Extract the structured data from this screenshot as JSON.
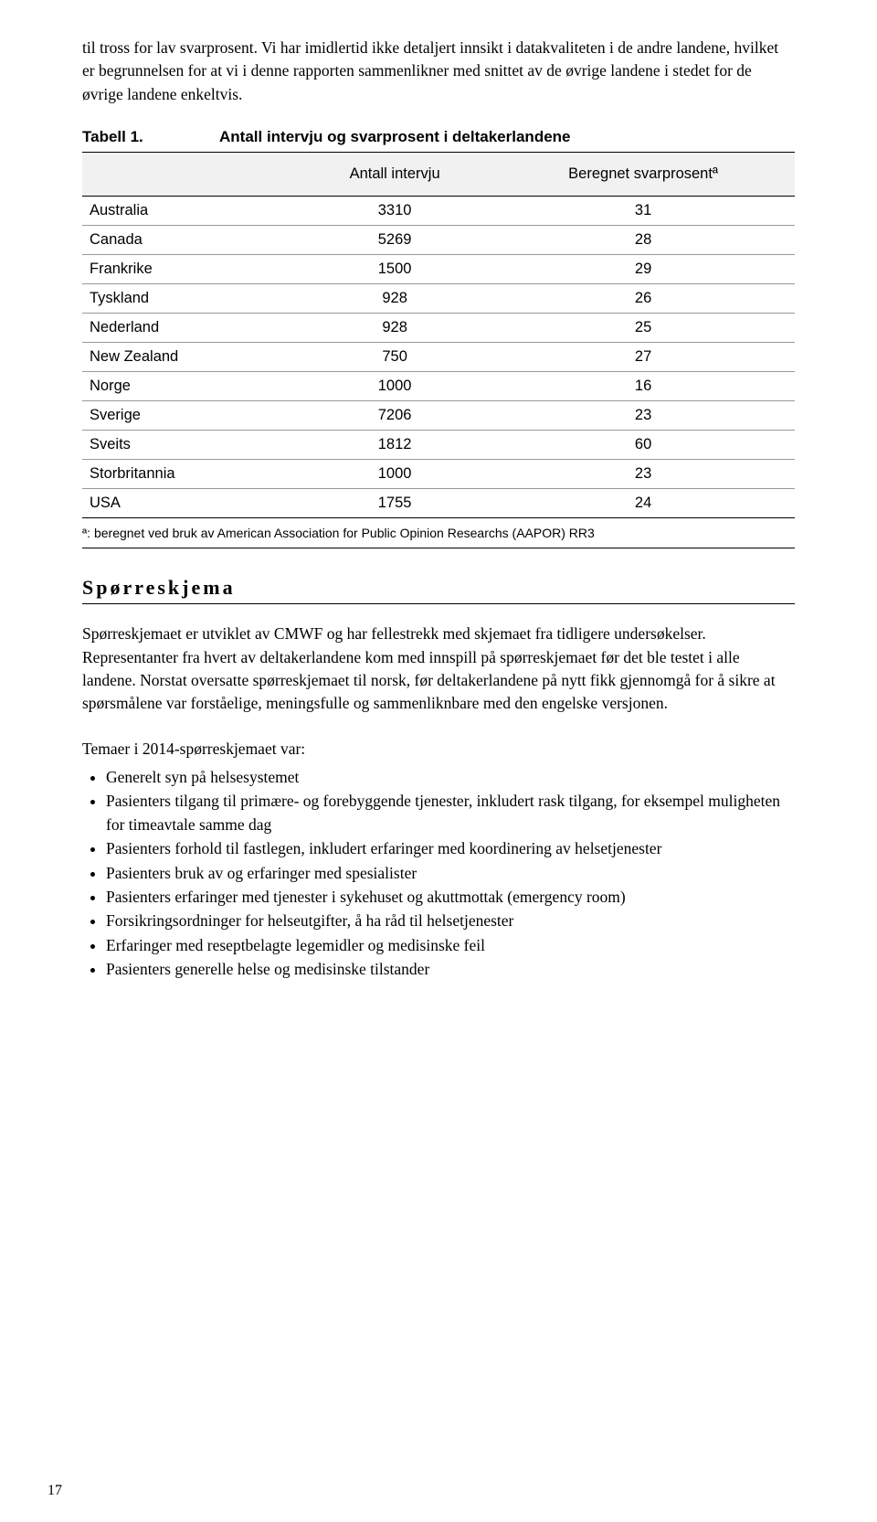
{
  "intro_paragraph": "til tross for lav svarprosent. Vi har imidlertid ikke detaljert innsikt i datakvaliteten i de andre landene, hvilket er begrunnelsen for at vi i denne rapporten sammenlikner med snittet av de øvrige landene i stedet for de øvrige landene enkeltvis.",
  "table": {
    "label": "Tabell 1.",
    "title": "Antall intervju og svarprosent i deltakerlandene",
    "headers": [
      "",
      "Antall intervju",
      "Beregnet svarprosentª"
    ],
    "rows": [
      [
        "Australia",
        "3310",
        "31"
      ],
      [
        "Canada",
        "5269",
        "28"
      ],
      [
        "Frankrike",
        "1500",
        "29"
      ],
      [
        "Tyskland",
        "928",
        "26"
      ],
      [
        "Nederland",
        "928",
        "25"
      ],
      [
        "New Zealand",
        "750",
        "27"
      ],
      [
        "Norge",
        "1000",
        "16"
      ],
      [
        "Sverige",
        "7206",
        "23"
      ],
      [
        "Sveits",
        "1812",
        "60"
      ],
      [
        "Storbritannia",
        "1000",
        "23"
      ],
      [
        "USA",
        "1755",
        "24"
      ]
    ],
    "footnote": "ª: beregnet ved bruk av American Association for Public Opinion Researchs (AAPOR) RR3"
  },
  "section_heading": "Spørreskjema",
  "sporreskjema_p1": "Spørreskjemaet er utviklet av CMWF og har fellestrekk med skjemaet fra tidligere undersøkelser. Representanter fra hvert av deltakerlandene kom med innspill på spørreskjemaet før det ble testet i alle landene. Norstat oversatte spørreskjemaet til norsk, før deltakerlandene på nytt fikk gjennomgå for å sikre at spørsmålene var forståelige, meningsfulle og sammenliknbare med den engelske versjonen.",
  "list_intro": "Temaer i 2014-spørreskjemaet var:",
  "bullets": [
    "Generelt syn på helsesystemet",
    "Pasienters tilgang til primære- og forebyggende tjenester, inkludert rask tilgang, for eksempel muligheten for timeavtale samme dag",
    "Pasienters forhold til fastlegen, inkludert erfaringer med koordinering av helsetjenester",
    "Pasienters bruk av og erfaringer med spesialister",
    "Pasienters erfaringer med tjenester i sykehuset og akuttmottak (emergency room)",
    "Forsikringsordninger for helseutgifter, å ha råd til helsetjenester",
    "Erfaringer med reseptbelagte legemidler og medisinske feil",
    "Pasienters generelle helse og medisinske tilstander"
  ],
  "page_number": "17"
}
